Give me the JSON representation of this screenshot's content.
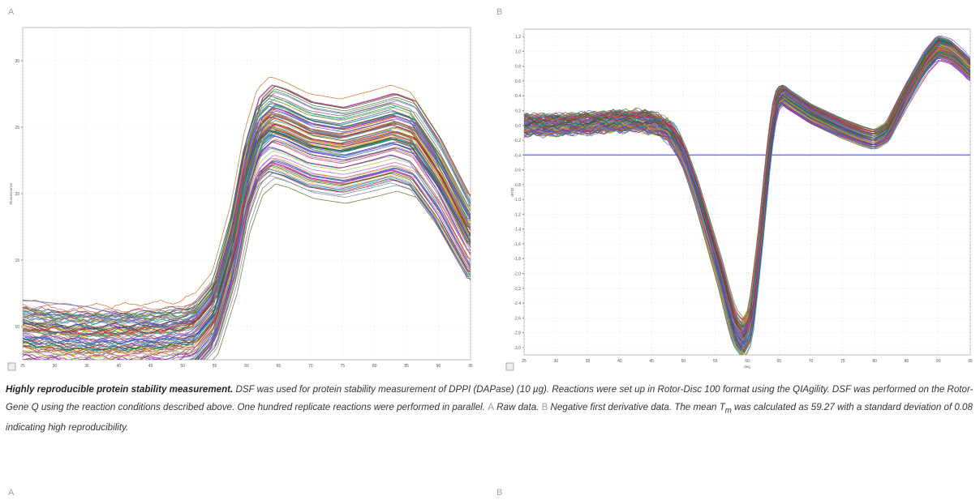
{
  "panels": {
    "a_label": "A",
    "b_label": "B",
    "bottom_a_label": "A",
    "bottom_b_label": "B"
  },
  "caption": {
    "bold": "Highly reproducible protein stability measurement.",
    "text1": " DSF was used for protein stability measurement of DPPI (DAPase) (10 µg). Reactions were set up in Rotor-Disc 100 format using the QIAgility. DSF was performed on the Rotor-Gene Q using the reaction conditions described above. One hundred replicate reactions were performed in parallel. ",
    "a_letter": "A",
    "a_text": " Raw data. ",
    "b_letter": "B",
    "b_text": " Negative first derivative data. The mean T",
    "tm_sub": "m",
    "text2": " was calculated as 59.27 with a standard deviation of 0.08 indicating high reproducibility."
  },
  "chart_data": [
    {
      "type": "line",
      "panel": "A",
      "ylabel": "Fluorescence",
      "xlim": [
        25,
        95
      ],
      "ylim": [
        7.5,
        32.5
      ],
      "x_ticks": [
        25,
        30,
        35,
        40,
        45,
        50,
        55,
        60,
        65,
        70,
        75,
        80,
        85,
        90,
        95
      ],
      "y_ticks": [
        10,
        15,
        20,
        25,
        30
      ],
      "grid": true,
      "profile": {
        "x": [
          25,
          30,
          35,
          40,
          45,
          50,
          52,
          55,
          58,
          60,
          62,
          64,
          66,
          70,
          75,
          80,
          83,
          86,
          90,
          95
        ],
        "y": [
          9.0,
          8.75,
          8.6,
          8.65,
          8.75,
          8.95,
          9.3,
          11.0,
          16.0,
          21.0,
          24.0,
          24.9,
          24.6,
          23.7,
          23.3,
          23.9,
          24.3,
          23.8,
          21.0,
          16.5
        ]
      },
      "series_count": 100,
      "replicate_offset_range": [
        -2.3,
        2.7
      ],
      "outlier_series": [
        {
          "x": [
            25,
            35,
            45,
            48,
            52
          ],
          "y": [
            12.0,
            11.5,
            10.3,
            10.0,
            10.8
          ]
        },
        {
          "x": [
            25,
            35,
            45,
            48,
            52
          ],
          "y": [
            11.0,
            10.8,
            10.2,
            9.8,
            10.6
          ]
        }
      ]
    },
    {
      "type": "line",
      "panel": "B",
      "ylabel": "dF/dT",
      "xlabel": "deg",
      "xlim": [
        25,
        95
      ],
      "ylim": [
        -3.1,
        1.3
      ],
      "x_ticks": [
        25,
        30,
        35,
        40,
        45,
        50,
        55,
        60,
        65,
        70,
        75,
        80,
        85,
        90,
        95
      ],
      "y_ticks": [
        1.2,
        1.0,
        0.8,
        0.6,
        0.4,
        0.2,
        0.0,
        -0.2,
        -0.4,
        -0.6,
        -0.8,
        -1.0,
        -1.2,
        -1.4,
        -1.6,
        -1.8,
        -2.0,
        -2.2,
        -2.4,
        -2.6,
        -2.8,
        -3.0
      ],
      "threshold": -0.4,
      "grid": true,
      "profile": {
        "x": [
          25,
          30,
          35,
          40,
          44,
          46,
          48,
          50,
          52,
          54,
          56,
          57,
          58,
          59.3,
          60.5,
          62,
          63.5,
          64.5,
          65.5,
          66.5,
          70,
          75,
          78,
          80,
          82,
          85,
          88,
          90,
          92,
          94,
          95
        ],
        "y": [
          0.0,
          0.0,
          0.02,
          0.05,
          0.05,
          0.0,
          -0.1,
          -0.4,
          -0.9,
          -1.5,
          -2.1,
          -2.45,
          -2.75,
          -2.9,
          -2.7,
          -1.6,
          -0.3,
          0.3,
          0.42,
          0.35,
          0.15,
          -0.05,
          -0.15,
          -0.2,
          -0.1,
          0.4,
          0.85,
          1.05,
          1.0,
          0.85,
          0.75
        ]
      },
      "series_count": 100,
      "replicate_offset_range": [
        -0.12,
        0.14
      ],
      "peak_x": 59.27
    }
  ]
}
